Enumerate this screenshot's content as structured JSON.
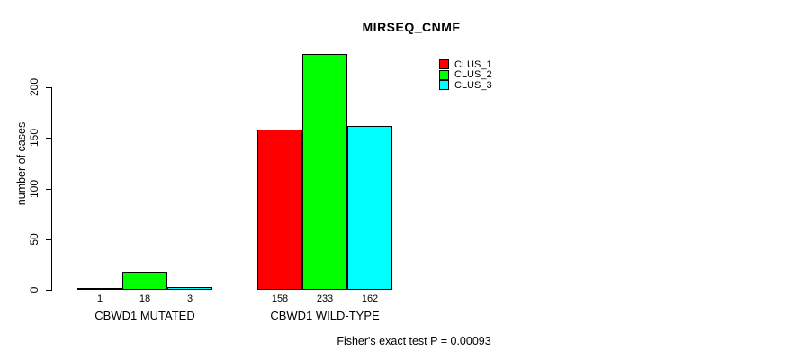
{
  "title": "MIRSEQ_CNMF",
  "footer": "Fisher's exact test P = 0.00093",
  "chart_data": {
    "type": "bar",
    "title": "MIRSEQ_CNMF",
    "xlabel": "",
    "ylabel": "number of cases",
    "categories": [
      "CBWD1 MUTATED",
      "CBWD1 WILD-TYPE"
    ],
    "series": [
      {
        "name": "CLUS_1",
        "color": "#ff0000",
        "values": [
          1,
          158
        ]
      },
      {
        "name": "CLUS_2",
        "color": "#00ff00",
        "values": [
          18,
          233
        ]
      },
      {
        "name": "CLUS_3",
        "color": "#00ffff",
        "values": [
          3,
          162
        ]
      }
    ],
    "yticks": [
      0,
      50,
      100,
      150,
      200
    ],
    "ylim": [
      0,
      240
    ],
    "grid": false,
    "bar_value_labels_shown": true,
    "legend_position": "top-right",
    "annotation": "Fisher's exact test P = 0.00093"
  },
  "colors": {
    "background": "#ffffff",
    "axis": "#000000",
    "bar_border": "#000000",
    "clus_1": "#ff0000",
    "clus_2": "#00ff00",
    "clus_3": "#00ffff"
  }
}
